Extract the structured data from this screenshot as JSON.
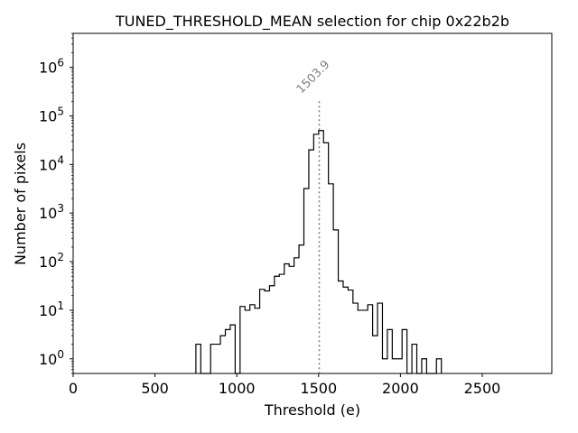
{
  "chart_data": {
    "type": "histogram",
    "title": "TUNED_THRESHOLD_MEAN selection for chip 0x22b2b",
    "xlabel": "Threshold (e)",
    "ylabel": "Number of pixels",
    "xlim": [
      0,
      2925
    ],
    "ylim": [
      0.5,
      5000000
    ],
    "yscale": "log",
    "x_ticks": [
      {
        "value": 0,
        "label": "0"
      },
      {
        "value": 500,
        "label": "500"
      },
      {
        "value": 1000,
        "label": "1000"
      },
      {
        "value": 1500,
        "label": "1500"
      },
      {
        "value": 2000,
        "label": "2000"
      },
      {
        "value": 2500,
        "label": "2500"
      }
    ],
    "y_ticks": [
      {
        "exp": 0,
        "base": "10",
        "power": "0"
      },
      {
        "exp": 1,
        "base": "10",
        "power": "1"
      },
      {
        "exp": 2,
        "base": "10",
        "power": "2"
      },
      {
        "exp": 3,
        "base": "10",
        "power": "3"
      },
      {
        "exp": 4,
        "base": "10",
        "power": "4"
      },
      {
        "exp": 5,
        "base": "10",
        "power": "5"
      },
      {
        "exp": 6,
        "base": "10",
        "power": "6"
      }
    ],
    "bin_width": 30,
    "bins": [
      [
        750,
        2
      ],
      [
        780,
        0
      ],
      [
        810,
        0
      ],
      [
        840,
        2
      ],
      [
        870,
        2
      ],
      [
        900,
        3
      ],
      [
        930,
        4
      ],
      [
        960,
        5
      ],
      [
        990,
        0
      ],
      [
        1020,
        12
      ],
      [
        1050,
        10
      ],
      [
        1080,
        13
      ],
      [
        1110,
        11
      ],
      [
        1140,
        27
      ],
      [
        1170,
        25
      ],
      [
        1200,
        32
      ],
      [
        1230,
        50
      ],
      [
        1260,
        55
      ],
      [
        1290,
        90
      ],
      [
        1320,
        80
      ],
      [
        1350,
        120
      ],
      [
        1380,
        220
      ],
      [
        1410,
        3200
      ],
      [
        1440,
        20000
      ],
      [
        1470,
        42000
      ],
      [
        1500,
        50000
      ],
      [
        1530,
        28000
      ],
      [
        1560,
        4000
      ],
      [
        1590,
        450
      ],
      [
        1620,
        40
      ],
      [
        1650,
        30
      ],
      [
        1680,
        26
      ],
      [
        1710,
        14
      ],
      [
        1740,
        10
      ],
      [
        1770,
        10
      ],
      [
        1800,
        13
      ],
      [
        1830,
        3
      ],
      [
        1860,
        14
      ],
      [
        1890,
        1
      ],
      [
        1920,
        4
      ],
      [
        1950,
        1
      ],
      [
        1980,
        1
      ],
      [
        2010,
        4
      ],
      [
        2040,
        0
      ],
      [
        2070,
        2
      ],
      [
        2100,
        0
      ],
      [
        2130,
        1
      ],
      [
        2160,
        0
      ],
      [
        2190,
        0
      ],
      [
        2220,
        1
      ]
    ],
    "annotation": {
      "label": "1503.9",
      "x": 1503.9,
      "y_top": 200000
    }
  }
}
